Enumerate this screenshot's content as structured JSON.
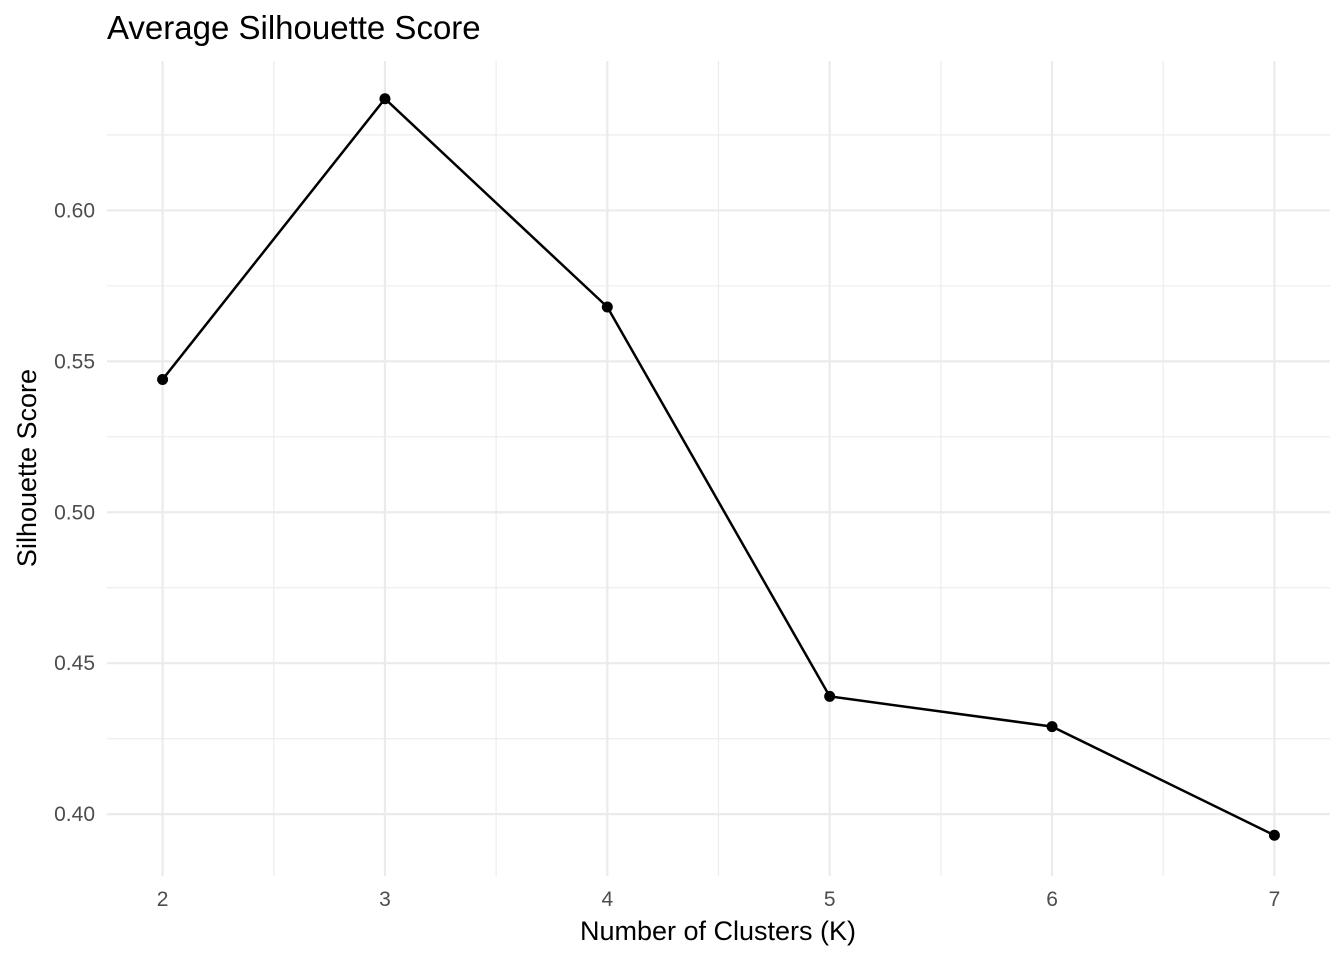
{
  "chart_data": {
    "type": "line",
    "title": "Average Silhouette Score",
    "xlabel": "Number of Clusters (K)",
    "ylabel": "Silhouette Score",
    "x": [
      2,
      3,
      4,
      5,
      6,
      7
    ],
    "y": [
      0.544,
      0.637,
      0.568,
      0.439,
      0.429,
      0.393
    ],
    "xticks": [
      "2",
      "3",
      "4",
      "5",
      "6",
      "7"
    ],
    "yticks": [
      "0.40",
      "0.45",
      "0.50",
      "0.55",
      "0.60"
    ],
    "xlim": [
      1.75,
      7.25
    ],
    "ylim": [
      0.3795,
      0.6495
    ],
    "grid": true,
    "colors": {
      "line": "#000000",
      "grid": "#ebebeb",
      "tick_text": "#4d4d4d"
    }
  }
}
